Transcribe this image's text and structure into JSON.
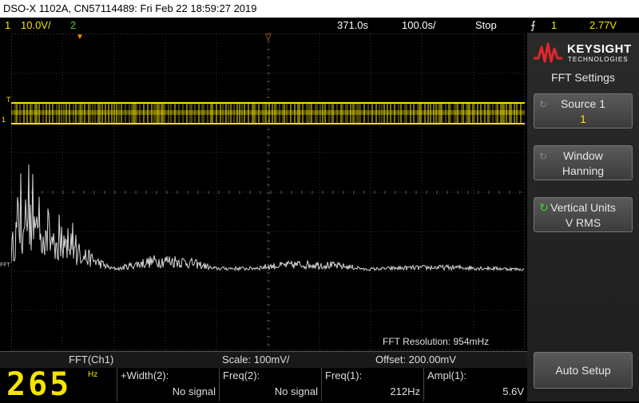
{
  "titlebar": {
    "text": "DSO-X 1102A, CN57114489: Fri Feb 22 18:59:27 2019"
  },
  "status": {
    "ch1_num": "1",
    "ch1_scale": "10.0V/",
    "ch2_num": "2",
    "timebase": "371.0s",
    "trigger_pos": "100.0s/",
    "run_state": "Stop",
    "trig_icon": "trigger-rising-edge-icon",
    "trig_symbol": "⨍",
    "trig_channel": "1",
    "trig_level": "2.77V"
  },
  "grid": {
    "marker_t": "T",
    "marker_1": "1",
    "marker_fft": "FFT",
    "fft_resolution": "FFT Resolution: 954mHz"
  },
  "bottombar": {
    "source": "FFT(Ch1)",
    "scale": "Scale: 100mV/",
    "offset": "Offset: 200.00mV"
  },
  "measurements": {
    "big_value": "265",
    "big_unit": "Hz",
    "items": [
      {
        "label": "+Width(2):",
        "value": "No signal"
      },
      {
        "label": "Freq(2):",
        "value": "No signal"
      },
      {
        "label": "Freq(1):",
        "value": "212Hz"
      },
      {
        "label": "Ampl(1):",
        "value": "5.6V"
      }
    ]
  },
  "panel": {
    "brand": "KEYSIGHT",
    "brand_sub": "TECHNOLOGIES",
    "menu_title": "FFT Settings",
    "softkeys": [
      {
        "line1": "Source 1",
        "line2": "1"
      },
      {
        "line1": "Window",
        "line2": "Hanning"
      },
      {
        "line1": "Vertical Units",
        "line2": "V RMS"
      }
    ],
    "auto_setup": "Auto Setup"
  },
  "colors": {
    "ch1": "#f5e400",
    "ch2": "#3ed12f",
    "fft": "#d8d8d8",
    "grid": "#3a3a3a"
  }
}
